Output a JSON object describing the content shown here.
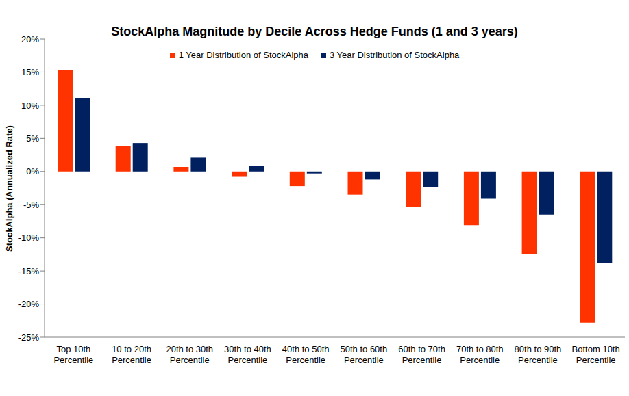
{
  "chart_data": {
    "type": "bar",
    "title": "StockAlpha Magnitude by Decile Across Hedge Funds (1 and 3 years)",
    "y_label": "StockAlpha (Annualized Rate)",
    "categories": [
      "Top 10th Percentile",
      "10 to 20th Percentile",
      "20th to 30th Percentile",
      "30th to 40th Percentile",
      "40th to 50th Percentile",
      "50th to 60th Percentile",
      "60th to 70th Percentile",
      "70th to 80th Percentile",
      "80th to 90th Percentile",
      "Bottom 10th Percentile"
    ],
    "series": [
      {
        "name": "1 Year Distribution of StockAlpha",
        "color": "#ff3300",
        "values": [
          15.3,
          3.9,
          0.7,
          -0.8,
          -2.2,
          -3.5,
          -5.3,
          -8.1,
          -12.4,
          -22.8
        ]
      },
      {
        "name": "3 Year Distribution of StockAlpha",
        "color": "#002060",
        "values": [
          11.1,
          4.3,
          2.1,
          0.8,
          -0.3,
          -1.2,
          -2.4,
          -4.1,
          -6.5,
          -13.8
        ]
      }
    ],
    "ylim": [
      -25,
      20
    ],
    "yticks": [
      {
        "value": -25,
        "label": "-25%"
      },
      {
        "value": -20,
        "label": "-20%"
      },
      {
        "value": -15,
        "label": "-15%"
      },
      {
        "value": -10,
        "label": "-10%"
      },
      {
        "value": -5,
        "label": "-5%"
      },
      {
        "value": 0,
        "label": "0%"
      },
      {
        "value": 5,
        "label": "5%"
      },
      {
        "value": 10,
        "label": "10%"
      },
      {
        "value": 15,
        "label": "15%"
      },
      {
        "value": 20,
        "label": "20%"
      }
    ],
    "grid": false,
    "legend": "top"
  }
}
